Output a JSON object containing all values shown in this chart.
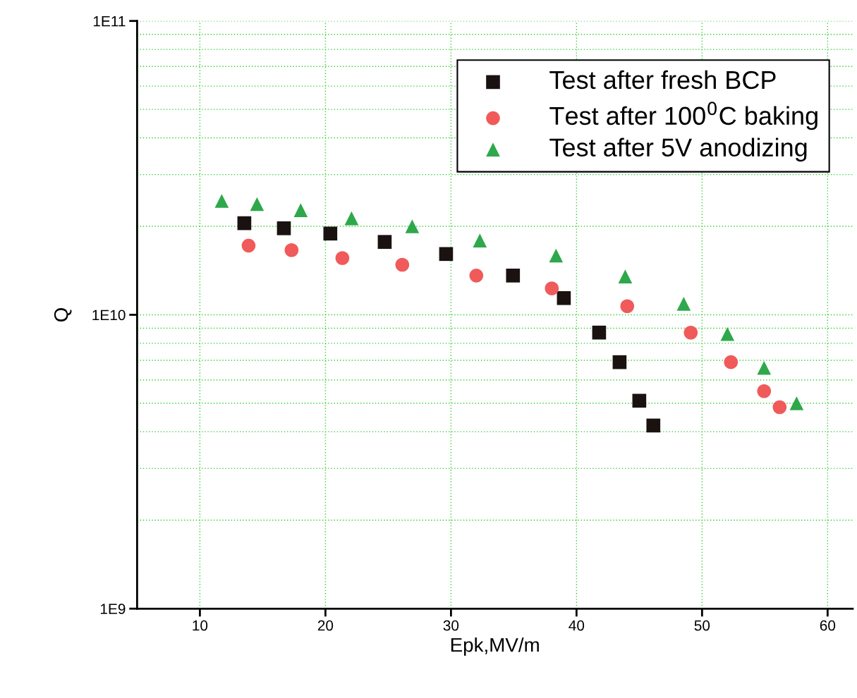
{
  "chart_data": {
    "type": "scatter",
    "xlabel": "Epk,MV/m",
    "ylabel": "Q",
    "series": [
      {
        "name": "Test after fresh BCP",
        "color": "#1a1210",
        "marker": "square",
        "x": [
          13.54,
          16.69,
          20.39,
          24.72,
          29.61,
          34.94,
          38.99,
          41.8,
          43.43,
          45.0,
          46.12
        ],
        "values": [
          20500000000.0,
          19700000000.0,
          18900000000.0,
          17700000000.0,
          16100000000.0,
          13600000000.0,
          11400000000.0,
          8700000000.0,
          6900000000.0,
          5100000000.0,
          4200000000.0
        ]
      },
      {
        "name": "Test after 100$^{0}$C baking",
        "color": "#f05a5a",
        "marker": "circle",
        "x": [
          13.88,
          17.3,
          21.35,
          26.12,
          32.02,
          38.03,
          44.04,
          49.1,
          52.3,
          54.94,
          56.18
        ],
        "values": [
          17200000000.0,
          16600000000.0,
          15600000000.0,
          14800000000.0,
          13600000000.0,
          12300000000.0,
          10700000000.0,
          8700000000.0,
          6900000000.0,
          5500000000.0,
          4850000000.0
        ]
      },
      {
        "name": "Test after 5V anodizing",
        "color": "#2ea84a",
        "marker": "triangle",
        "x": [
          11.74,
          14.55,
          18.03,
          22.08,
          26.91,
          32.3,
          38.37,
          43.88,
          48.54,
          52.02,
          54.94,
          57.53
        ],
        "values": [
          24400000000.0,
          23800000000.0,
          22700000000.0,
          21300000000.0,
          20000000000.0,
          17900000000.0,
          15900000000.0,
          13500000000.0,
          10900000000.0,
          8600000000.0,
          6600000000.0,
          5000000000.0
        ]
      }
    ],
    "log": "y",
    "xlim": [
      5,
      62
    ],
    "xticks": [
      10,
      20,
      30,
      40,
      50,
      60
    ],
    "ylim": [
      1000000000.0,
      100000000000.0
    ],
    "yticks": [
      {
        "value": 1000000000.0,
        "label": "1E9"
      },
      {
        "value": 10000000000.0,
        "label": "1E10"
      },
      {
        "value": 100000000000.0,
        "label": "1E11"
      }
    ],
    "grid": true,
    "legend": "top right"
  }
}
